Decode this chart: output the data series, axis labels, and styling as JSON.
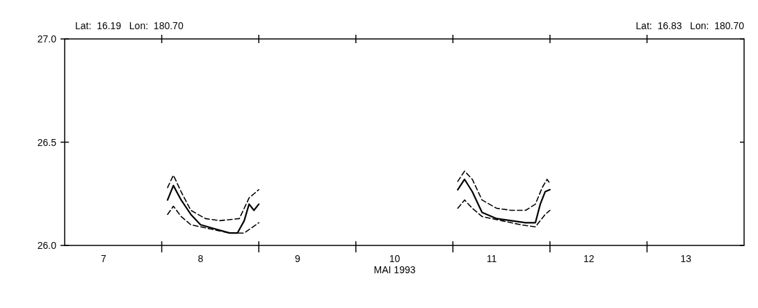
{
  "chart_data": {
    "type": "line",
    "xlabel": "MAI 1993",
    "annotations": [
      "Lat:  16.19   Lon:  180.70",
      "Lat:  16.83   Lon:  180.70"
    ],
    "xlim": [
      7,
      14
    ],
    "ylim": [
      26,
      27
    ],
    "xticks": [
      {
        "value": 7.4,
        "label": "7"
      },
      {
        "value": 8,
        "label": null
      },
      {
        "value": 8.4,
        "label": "8"
      },
      {
        "value": 9,
        "label": null
      },
      {
        "value": 9.4,
        "label": "9"
      },
      {
        "value": 10,
        "label": null
      },
      {
        "value": 10.4,
        "label": "10"
      },
      {
        "value": 11,
        "label": null
      },
      {
        "value": 11.4,
        "label": "11"
      },
      {
        "value": 12,
        "label": null
      },
      {
        "value": 12.4,
        "label": "12"
      },
      {
        "value": 13,
        "label": null
      },
      {
        "value": 13.4,
        "label": "13"
      }
    ],
    "yticks": [
      {
        "value": 26,
        "label": "26.0"
      },
      {
        "value": 26.5,
        "label": "26.5"
      },
      {
        "value": 27,
        "label": "27.0"
      }
    ],
    "grid": false,
    "series": [
      {
        "color": "#000000",
        "line_style": "solid",
        "x": [
          8.06,
          8.12,
          8.2,
          8.3,
          8.4,
          8.55,
          8.7,
          8.78,
          8.85,
          8.9,
          8.95,
          9.0,
          10,
          11.05,
          11.12,
          11.2,
          11.3,
          11.45,
          11.6,
          11.75,
          11.85,
          11.9,
          11.95,
          12.0
        ],
        "values": [
          26.22,
          26.29,
          26.22,
          26.15,
          26.1,
          26.08,
          26.06,
          26.06,
          26.12,
          26.2,
          26.17,
          26.2,
          null,
          26.27,
          26.32,
          26.26,
          26.16,
          26.13,
          26.12,
          26.11,
          26.11,
          26.2,
          26.26,
          26.27
        ]
      },
      {
        "color": "#000000",
        "line_style": "dashed",
        "x": [
          8.06,
          8.12,
          8.2,
          8.3,
          8.45,
          8.6,
          8.8,
          8.9,
          8.95,
          9.0,
          10,
          11.05,
          11.12,
          11.2,
          11.3,
          11.45,
          11.6,
          11.75,
          11.85,
          11.92,
          11.97,
          12.0
        ],
        "values": [
          26.28,
          26.34,
          26.26,
          26.17,
          26.13,
          26.12,
          26.13,
          26.23,
          26.25,
          26.27,
          null,
          26.31,
          26.36,
          26.32,
          26.22,
          26.18,
          26.17,
          26.17,
          26.2,
          26.28,
          26.32,
          26.3
        ]
      },
      {
        "color": "#000000",
        "line_style": "dashed",
        "x": [
          8.06,
          8.12,
          8.2,
          8.3,
          8.5,
          8.7,
          8.85,
          9.0,
          10,
          11.05,
          11.12,
          11.2,
          11.3,
          11.5,
          11.7,
          11.85,
          11.95,
          12.0
        ],
        "values": [
          26.15,
          26.19,
          26.14,
          26.1,
          26.08,
          26.06,
          26.06,
          26.11,
          null,
          26.18,
          26.22,
          26.18,
          26.14,
          26.12,
          26.1,
          26.09,
          26.15,
          26.17
        ]
      }
    ]
  }
}
